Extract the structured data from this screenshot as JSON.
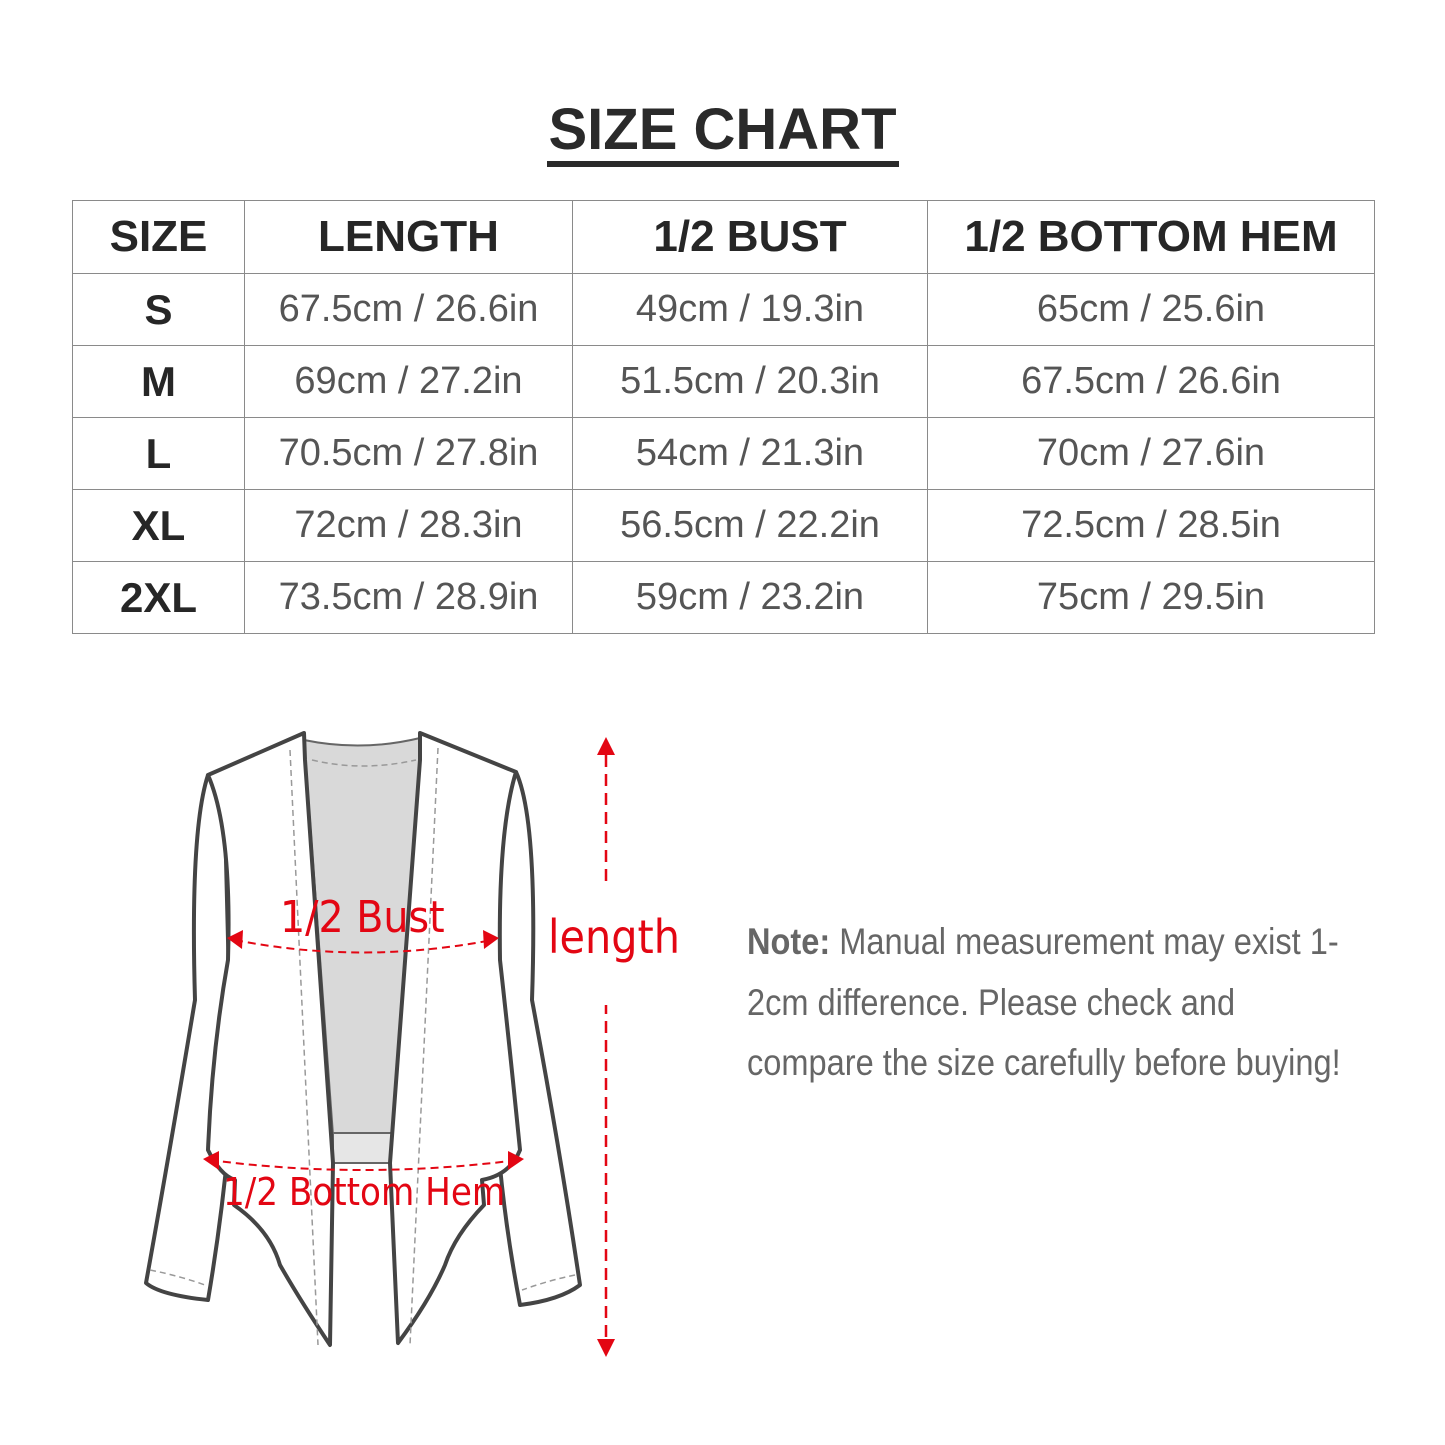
{
  "title": "SIZE CHART",
  "table": {
    "headers": [
      "SIZE",
      "LENGTH",
      "1/2 BUST",
      "1/2 BOTTOM HEM"
    ],
    "rows": [
      [
        "S",
        "67.5cm / 26.6in",
        "49cm / 19.3in",
        "65cm / 25.6in"
      ],
      [
        "M",
        "69cm / 27.2in",
        "51.5cm / 20.3in",
        "67.5cm / 26.6in"
      ],
      [
        "L",
        "70.5cm / 27.8in",
        "54cm / 21.3in",
        "70cm / 27.6in"
      ],
      [
        "XL",
        "72cm / 28.3in",
        "56.5cm / 22.2in",
        "72.5cm / 28.5in"
      ],
      [
        "2XL",
        "73.5cm / 28.9in",
        "59cm / 23.2in",
        "75cm / 29.5in"
      ]
    ]
  },
  "diagram": {
    "bust_label": "1/2 Bust",
    "hem_label": "1/2 Bottom Hem",
    "length_label": "length",
    "accent_color": "#e30613"
  },
  "note": {
    "label": "Note:",
    "text": " Manual measurement may exist 1-2cm difference. Please check and compare the size carefully before buying!"
  }
}
